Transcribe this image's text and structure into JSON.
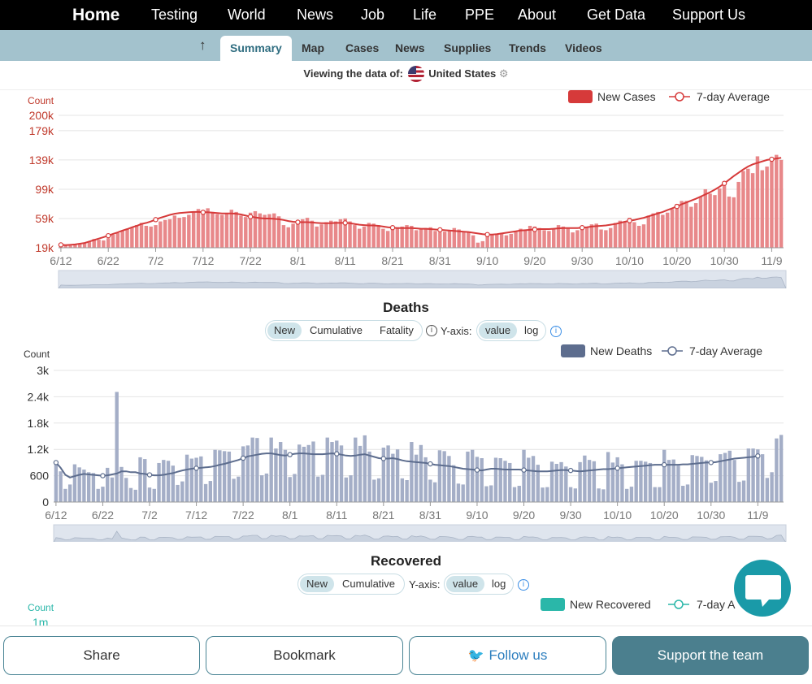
{
  "topnav": {
    "items": [
      "Home",
      "Testing",
      "World",
      "News",
      "Job",
      "Life",
      "PPE",
      "About",
      "Get Data",
      "Support Us"
    ]
  },
  "subnav": {
    "tabs": [
      "Summary",
      "Map",
      "Cases",
      "News",
      "Supplies",
      "Trends",
      "Videos"
    ],
    "active": "Summary"
  },
  "viewing": {
    "prefix": "Viewing the data of:",
    "country": "United States"
  },
  "colors": {
    "cases": "#d63a3a",
    "cases_bar": "#e8888a",
    "deaths": "#5d6d8e",
    "deaths_bar": "#a4aec7",
    "recovered": "#2ab7a9"
  },
  "chart_data": [
    {
      "type": "bar",
      "ylabel": "Count",
      "legend": [
        "New Cases",
        "7-day Average"
      ],
      "yticks": [
        "19k",
        "59k",
        "99k",
        "139k",
        "179k",
        "200k"
      ],
      "ytick_values": [
        19000,
        59000,
        99000,
        139000,
        179000,
        200000
      ],
      "ylim": [
        19000,
        200000
      ],
      "xticks": [
        "6/12",
        "6/22",
        "7/2",
        "7/12",
        "7/22",
        "8/1",
        "8/11",
        "8/21",
        "8/31",
        "9/10",
        "9/20",
        "9/30",
        "10/10",
        "10/20",
        "10/30",
        "11/9"
      ],
      "values": [
        25000,
        23000,
        22000,
        23000,
        24000,
        25000,
        27000,
        31000,
        30000,
        29000,
        32000,
        37000,
        39000,
        43000,
        45000,
        47000,
        50000,
        53000,
        49000,
        48000,
        50000,
        55000,
        57000,
        58000,
        63000,
        60000,
        61000,
        64000,
        68000,
        72000,
        70000,
        73000,
        68000,
        65000,
        64000,
        66000,
        71000,
        68000,
        63000,
        61000,
        67000,
        69000,
        66000,
        64000,
        65000,
        66000,
        62000,
        50000,
        47000,
        52000,
        54000,
        58000,
        60000,
        56000,
        48000,
        51000,
        54000,
        56000,
        55000,
        58000,
        59000,
        55000,
        50000,
        45000,
        48000,
        53000,
        52000,
        50000,
        45000,
        42000,
        46000,
        47000,
        48000,
        50000,
        49000,
        43000,
        44000,
        46000,
        47000,
        42000,
        40000,
        41000,
        43000,
        46000,
        44000,
        40000,
        41000,
        36000,
        26000,
        28000,
        35000,
        37000,
        38000,
        39000,
        36000,
        38000,
        42000,
        45000,
        44000,
        49000,
        48000,
        46000,
        43000,
        42000,
        44000,
        50000,
        48000,
        45000,
        40000,
        43000,
        49000,
        47000,
        51000,
        52000,
        44000,
        43000,
        46000,
        53000,
        56000,
        55000,
        60000,
        54000,
        49000,
        51000,
        63000,
        66000,
        68000,
        64000,
        67000,
        72000,
        79000,
        83000,
        83000,
        75000,
        80000,
        89000,
        99000,
        93000,
        91000,
        100000,
        104000,
        89000,
        88000,
        109000,
        124000,
        127000,
        121000,
        144000,
        125000,
        130000,
        142000,
        146000,
        139000
      ],
      "avg": [
        23000,
        22500,
        23000,
        23500,
        24500,
        25500,
        27500,
        29500,
        31500,
        33500,
        35500,
        38000,
        40000,
        42500,
        44500,
        47000,
        49000,
        51500,
        53000,
        55000,
        57500,
        60000,
        62000,
        64000,
        65500,
        66500,
        67000,
        67500,
        68000,
        68000,
        67500,
        67500,
        67000,
        66500,
        66000,
        66000,
        66000,
        65500,
        64500,
        63000,
        61500,
        60500,
        59500,
        59000,
        59000,
        58500,
        58000,
        57000,
        55500,
        54500,
        54000,
        54000,
        54000,
        53500,
        53000,
        52500,
        52500,
        52500,
        53000,
        53000,
        53000,
        52500,
        51500,
        50500,
        50000,
        49500,
        49500,
        49000,
        48000,
        47000,
        46500,
        46000,
        46000,
        46000,
        46000,
        45500,
        45000,
        45000,
        44500,
        44000,
        43500,
        43000,
        42500,
        42000,
        41500,
        41000,
        40500,
        39500,
        38500,
        37500,
        37000,
        37000,
        37500,
        38500,
        39500,
        40500,
        41500,
        42500,
        43000,
        43500,
        44000,
        44500,
        44500,
        44500,
        45000,
        45500,
        46000,
        46000,
        46000,
        46000,
        46500,
        47000,
        48000,
        48500,
        49000,
        49500,
        50500,
        51500,
        53000,
        54500,
        56000,
        57000,
        58500,
        60000,
        62000,
        64000,
        66000,
        68000,
        70500,
        73000,
        75500,
        78500,
        81000,
        83500,
        86000,
        89000,
        92000,
        95000,
        98500,
        102500,
        107000,
        112000,
        117000,
        121500,
        126000,
        130000,
        133000,
        135000,
        137000,
        139000,
        140000,
        141000,
        142000
      ]
    },
    {
      "type": "bar",
      "title": "Deaths",
      "ylabel": "Count",
      "legend": [
        "New Deaths",
        "7-day Average"
      ],
      "yticks": [
        "0",
        "600",
        "1.2k",
        "1.8k",
        "2.4k",
        "3k"
      ],
      "ytick_values": [
        0,
        600,
        1200,
        1800,
        2400,
        3000
      ],
      "ylim": [
        0,
        3000
      ],
      "xticks": [
        "6/12",
        "6/22",
        "7/2",
        "7/12",
        "7/22",
        "8/1",
        "8/11",
        "8/21",
        "8/31",
        "9/10",
        "9/20",
        "9/30",
        "10/10",
        "10/20",
        "10/30",
        "11/9"
      ],
      "values": [
        870,
        700,
        300,
        400,
        860,
        790,
        740,
        680,
        660,
        300,
        350,
        780,
        560,
        2510,
        800,
        550,
        320,
        280,
        1020,
        980,
        330,
        300,
        890,
        960,
        940,
        830,
        390,
        470,
        1080,
        990,
        1010,
        1040,
        410,
        480,
        1190,
        1180,
        1160,
        1150,
        530,
        580,
        1270,
        1290,
        1470,
        1460,
        610,
        650,
        1470,
        1220,
        1370,
        1190,
        570,
        640,
        1310,
        1260,
        1300,
        1380,
        580,
        620,
        1470,
        1370,
        1400,
        1290,
        560,
        610,
        1470,
        1280,
        1520,
        1150,
        510,
        540,
        1240,
        1290,
        1100,
        1200,
        540,
        500,
        1370,
        1080,
        1300,
        1020,
        510,
        450,
        1180,
        1160,
        1050,
        840,
        420,
        400,
        1150,
        1190,
        1030,
        1000,
        360,
        380,
        1010,
        1000,
        940,
        890,
        340,
        370,
        1190,
        1010,
        1050,
        850,
        330,
        340,
        920,
        870,
        910,
        810,
        340,
        310,
        910,
        1060,
        960,
        930,
        310,
        290,
        1140,
        900,
        1020,
        860,
        300,
        350,
        940,
        940,
        920,
        890,
        340,
        340,
        1190,
        960,
        970,
        830,
        370,
        400,
        1070,
        1050,
        1030,
        950,
        440,
        480,
        1090,
        1120,
        1170,
        960,
        460,
        490,
        1220,
        1220,
        1200,
        1090,
        550,
        680,
        1450,
        1530
      ],
      "avg": [
        900,
        780,
        620,
        560,
        590,
        620,
        640,
        630,
        620,
        610,
        600,
        610,
        630,
        650,
        700,
        700,
        680,
        680,
        650,
        640,
        620,
        610,
        610,
        620,
        640,
        660,
        690,
        720,
        740,
        760,
        770,
        780,
        790,
        800,
        820,
        850,
        870,
        900,
        930,
        960,
        1000,
        1040,
        1060,
        1080,
        1100,
        1110,
        1110,
        1090,
        1070,
        1060,
        1080,
        1100,
        1110,
        1110,
        1100,
        1090,
        1090,
        1090,
        1100,
        1110,
        1100,
        1080,
        1060,
        1050,
        1060,
        1080,
        1090,
        1060,
        1030,
        1000,
        990,
        990,
        1000,
        980,
        950,
        930,
        920,
        910,
        900,
        890,
        870,
        850,
        840,
        830,
        820,
        800,
        780,
        760,
        750,
        740,
        730,
        720,
        740,
        760,
        760,
        750,
        740,
        740,
        740,
        740,
        730,
        720,
        710,
        700,
        700,
        700,
        710,
        720,
        730,
        730,
        720,
        710,
        700,
        710,
        720,
        730,
        740,
        750,
        750,
        760,
        770,
        780,
        790,
        800,
        810,
        820,
        830,
        840,
        850,
        850,
        850,
        850,
        850,
        850,
        860,
        860,
        870,
        880,
        890,
        900,
        900,
        910,
        930,
        950,
        970,
        990,
        1000,
        1010,
        1020,
        1030,
        1050
      ]
    },
    {
      "type": "bar",
      "title": "Recovered",
      "ylabel": "Count",
      "legend": [
        "New Recovered",
        "7-day A"
      ],
      "yticks": [
        "1m"
      ]
    }
  ],
  "deaths_controls": {
    "mode": [
      "New",
      "Cumulative",
      "Fatality"
    ],
    "yaxis_label": "Y-axis:",
    "scale": [
      "value",
      "log"
    ]
  },
  "recovered_controls": {
    "mode": [
      "New",
      "Cumulative"
    ],
    "yaxis_label": "Y-axis:",
    "scale": [
      "value",
      "log"
    ]
  },
  "bottom": {
    "share": "Share",
    "bookmark": "Bookmark",
    "follow": "Follow us",
    "support": "Support the team"
  }
}
